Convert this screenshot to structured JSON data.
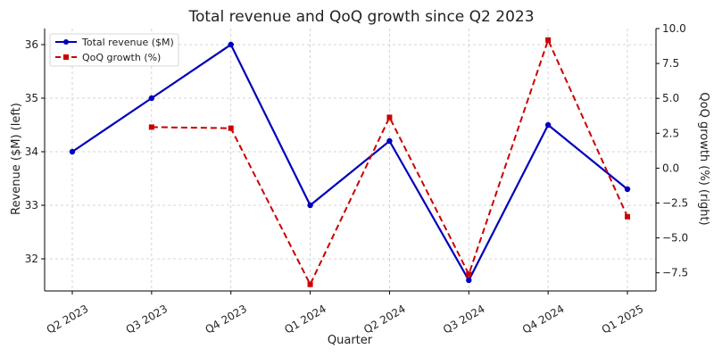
{
  "chart_data": {
    "type": "line",
    "title": "Total revenue and QoQ growth since Q2 2023",
    "xlabel": "Quarter",
    "ylabel_left": "Revenue ($M) (left)",
    "ylabel_right": "QoQ growth (%) (right)",
    "categories": [
      "Q2 2023",
      "Q3 2023",
      "Q4 2023",
      "Q1 2024",
      "Q2 2024",
      "Q3 2024",
      "Q4 2024",
      "Q1 2025"
    ],
    "ylim_left": [
      31.4,
      36.3
    ],
    "ylim_right": [
      -8.8,
      10.0
    ],
    "yticks_left": [
      32,
      33,
      34,
      35,
      36
    ],
    "yticks_right": [
      -7.5,
      -5.0,
      -2.5,
      0.0,
      2.5,
      5.0,
      7.5,
      10.0
    ],
    "ytick_labels_left": [
      "32",
      "33",
      "34",
      "35",
      "36"
    ],
    "ytick_labels_right": [
      "−7.5",
      "−5.0",
      "−2.5",
      "0.0",
      "2.5",
      "5.0",
      "7.5",
      "10.0"
    ],
    "grid": true,
    "legend_position": "top-left",
    "series": [
      {
        "name": "Total revenue ($M)",
        "axis": "left",
        "color": "#0000bb",
        "style": "solid",
        "marker": "circle",
        "values": [
          34.0,
          35.0,
          36.0,
          33.0,
          34.2,
          31.6,
          34.5,
          33.3
        ]
      },
      {
        "name": "QoQ growth (%)",
        "axis": "right",
        "color": "#cc0000",
        "style": "dashed",
        "marker": "square",
        "values": [
          null,
          2.94,
          2.86,
          -8.33,
          3.64,
          -7.6,
          9.18,
          -3.48
        ]
      }
    ]
  }
}
